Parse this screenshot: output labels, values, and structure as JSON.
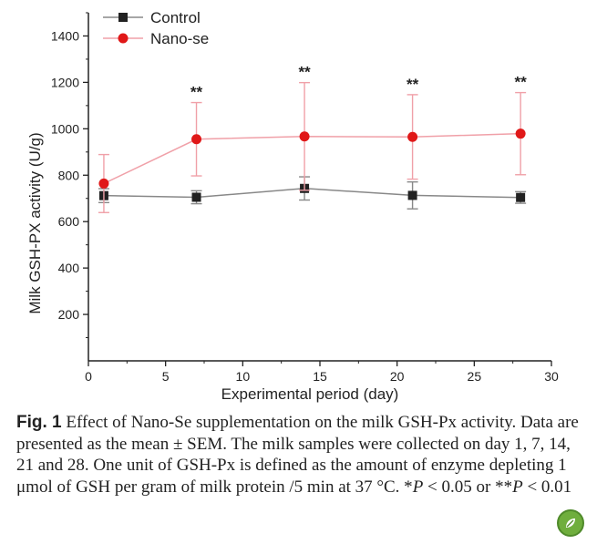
{
  "chart_data": {
    "type": "line",
    "title": "",
    "xlabel": "Experimental period (day)",
    "ylabel": "Milk GSH-PX activity (U/g)",
    "xlim": [
      0,
      30
    ],
    "ylim": [
      0,
      1500
    ],
    "xticks": [
      0,
      5,
      10,
      15,
      20,
      25,
      30
    ],
    "yticks": [
      200,
      400,
      600,
      800,
      1000,
      1200,
      1400
    ],
    "x": [
      1,
      7,
      14,
      21,
      28
    ],
    "grid": false,
    "legend_position": "top-left",
    "series": [
      {
        "name": "Control",
        "color": "#222222",
        "marker": "square",
        "line_color": "#888888",
        "values": [
          712,
          705,
          743,
          713,
          704
        ],
        "errors": [
          30,
          28,
          50,
          58,
          25
        ]
      },
      {
        "name": "Nano-se",
        "color": "#e01818",
        "marker": "circle",
        "line_color": "#f0a0a8",
        "values": [
          764,
          955,
          967,
          965,
          979
        ],
        "errors": [
          125,
          158,
          232,
          182,
          177
        ]
      }
    ],
    "annotations": [
      {
        "x": 7,
        "text": "**"
      },
      {
        "x": 14,
        "text": "**"
      },
      {
        "x": 21,
        "text": "**"
      },
      {
        "x": 28,
        "text": "**"
      }
    ]
  },
  "caption": {
    "fig_label": "Fig. 1",
    "text_1": "Effect of Nano-Se supplementation on the milk GSH-Px activity. Data are presented as the mean ± SEM. The milk samples were collected on day 1, 7, 14, 21 and 28. One unit of GSH-Px is defined as the amount of enzyme depleting 1 μmol of GSH per gram of milk protein /5 min at 37 °C. *",
    "p1": "P",
    "text_2": " < 0.05 or **",
    "p2": "P",
    "text_3": " < 0.01"
  },
  "badge_icon": "leaf-icon"
}
